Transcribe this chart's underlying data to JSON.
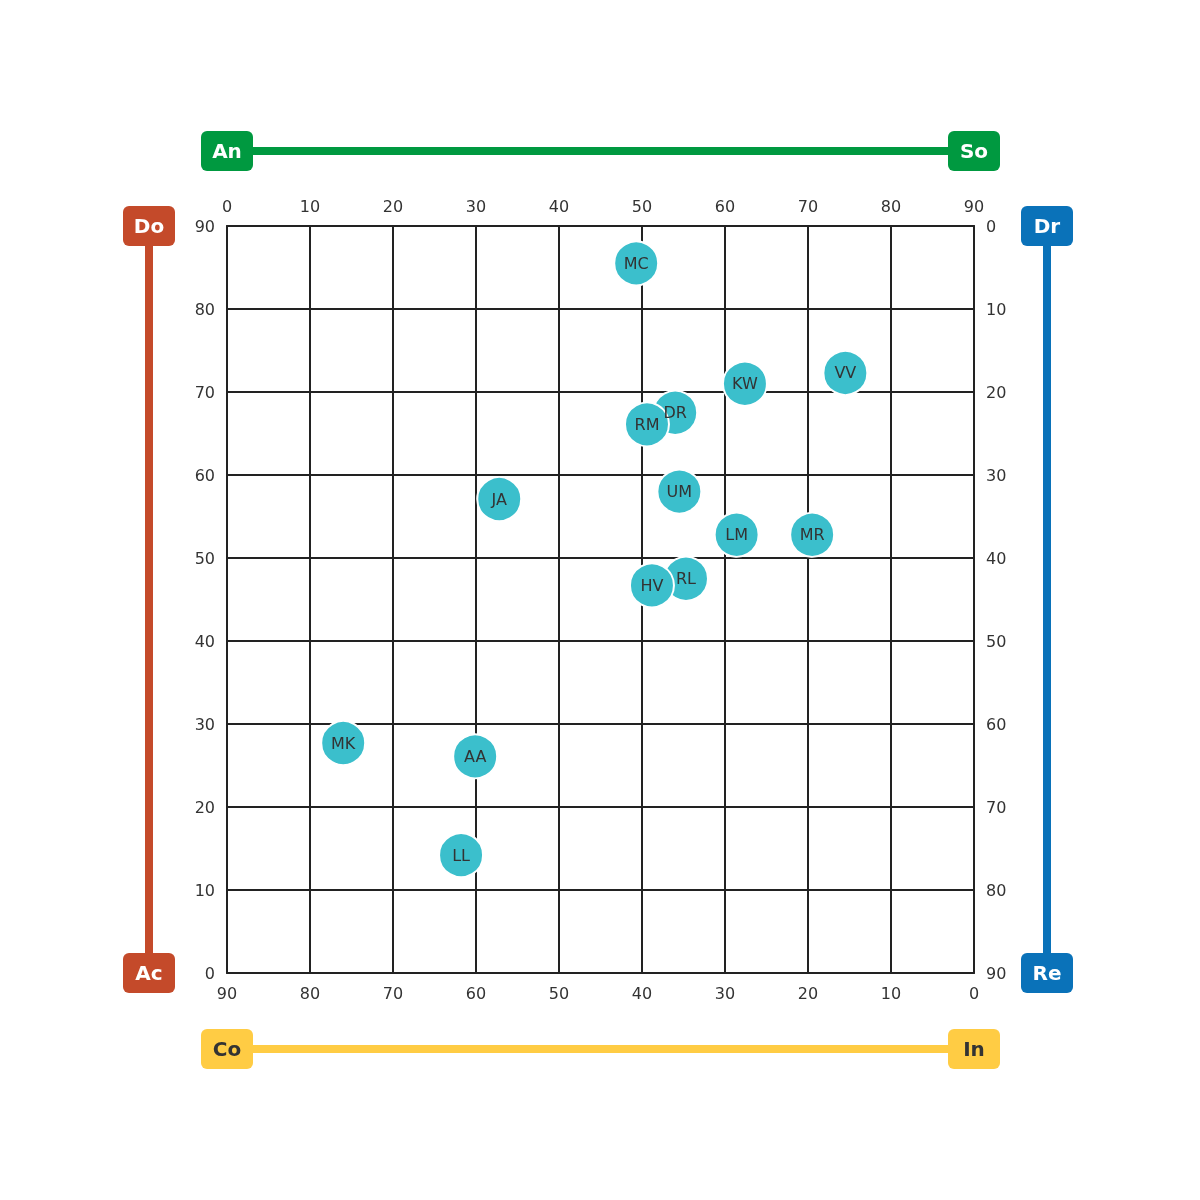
{
  "chart_data": {
    "type": "scatter",
    "marker": "circle",
    "grid": true,
    "xlim": [
      90,
      0
    ],
    "xticks": [
      90,
      80,
      70,
      60,
      50,
      40,
      30,
      20,
      10,
      0
    ],
    "x2lim": [
      0,
      90
    ],
    "x2ticks": [
      0,
      10,
      20,
      30,
      40,
      50,
      60,
      70,
      80,
      90
    ],
    "ylim": [
      0,
      90
    ],
    "yticks": [
      0,
      10,
      20,
      30,
      40,
      50,
      60,
      70,
      80,
      90
    ],
    "y2lim": [
      90,
      0
    ],
    "y2ticks": [
      0,
      10,
      20,
      30,
      40,
      50,
      60,
      70,
      80,
      90
    ],
    "annotations": [
      "An",
      "So",
      "Do",
      "Ac",
      "Dr",
      "Re",
      "Co",
      "In"
    ],
    "series": [
      {
        "name": "MC",
        "color": "#3bbfcc",
        "x": [
          40.7
        ],
        "values": [
          85.5
        ]
      },
      {
        "name": "KW",
        "color": "#3bbfcc",
        "x": [
          27.6
        ],
        "values": [
          71.0
        ]
      },
      {
        "name": "VV",
        "color": "#3bbfcc",
        "x": [
          15.5
        ],
        "values": [
          72.3
        ]
      },
      {
        "name": "DR",
        "color": "#3bbfcc",
        "x": [
          36.0
        ],
        "values": [
          67.5
        ]
      },
      {
        "name": "RM",
        "color": "#3bbfcc",
        "x": [
          39.4
        ],
        "values": [
          66.1
        ]
      },
      {
        "name": "JA",
        "color": "#3bbfcc",
        "x": [
          57.2
        ],
        "values": [
          57.1
        ]
      },
      {
        "name": "UM",
        "color": "#3bbfcc",
        "x": [
          35.5
        ],
        "values": [
          58.0
        ]
      },
      {
        "name": "LM",
        "color": "#3bbfcc",
        "x": [
          28.6
        ],
        "values": [
          52.8
        ]
      },
      {
        "name": "MR",
        "color": "#3bbfcc",
        "x": [
          19.5
        ],
        "values": [
          52.8
        ]
      },
      {
        "name": "RL",
        "color": "#3bbfcc",
        "x": [
          34.7
        ],
        "values": [
          47.5
        ]
      },
      {
        "name": "HV",
        "color": "#3bbfcc",
        "x": [
          38.8
        ],
        "values": [
          46.7
        ]
      },
      {
        "name": "MK",
        "color": "#3bbfcc",
        "x": [
          76.0
        ],
        "values": [
          27.7
        ]
      },
      {
        "name": "AA",
        "color": "#3bbfcc",
        "x": [
          60.1
        ],
        "values": [
          26.1
        ]
      },
      {
        "name": "LL",
        "color": "#3bbfcc",
        "x": [
          61.8
        ],
        "values": [
          14.2
        ]
      }
    ]
  }
}
